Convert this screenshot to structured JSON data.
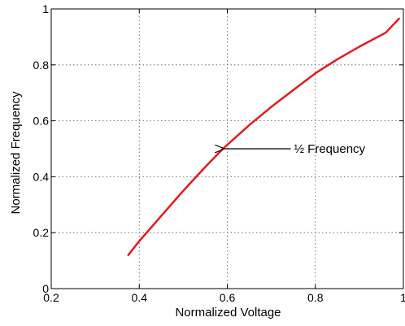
{
  "chart_data": {
    "type": "line",
    "title": "",
    "xlabel": "Normalized Voltage",
    "ylabel": "Normalized Frequency",
    "xlim": [
      0.2,
      1.0
    ],
    "ylim": [
      0,
      1
    ],
    "grid": true,
    "grid_style": "dotted",
    "x_ticks": [
      {
        "value": 0.2,
        "label": "0.2"
      },
      {
        "value": 0.4,
        "label": "0.4"
      },
      {
        "value": 0.6,
        "label": "0.6"
      },
      {
        "value": 0.8,
        "label": "0.8"
      },
      {
        "value": 1.0,
        "label": "1"
      }
    ],
    "y_ticks": [
      {
        "value": 0,
        "label": "0"
      },
      {
        "value": 0.2,
        "label": "0.2"
      },
      {
        "value": 0.4,
        "label": "0.4"
      },
      {
        "value": 0.6,
        "label": "0.6"
      },
      {
        "value": 0.8,
        "label": "0.8"
      },
      {
        "value": 1.0,
        "label": "1"
      }
    ],
    "series": [
      {
        "color": "#e41a1c",
        "x": [
          0.375,
          0.4,
          0.45,
          0.5,
          0.55,
          0.59,
          0.65,
          0.7,
          0.75,
          0.8,
          0.85,
          0.9,
          0.96,
          0.99
        ],
        "y": [
          0.12,
          0.17,
          0.26,
          0.35,
          0.435,
          0.5,
          0.585,
          0.65,
          0.71,
          0.77,
          0.82,
          0.865,
          0.915,
          0.965
        ]
      }
    ],
    "annotations": [
      {
        "text": "½ Frequency",
        "arrow_to": {
          "x": 0.59,
          "y": 0.5
        },
        "text_at": {
          "x": 0.77,
          "y": 0.5
        }
      }
    ]
  }
}
